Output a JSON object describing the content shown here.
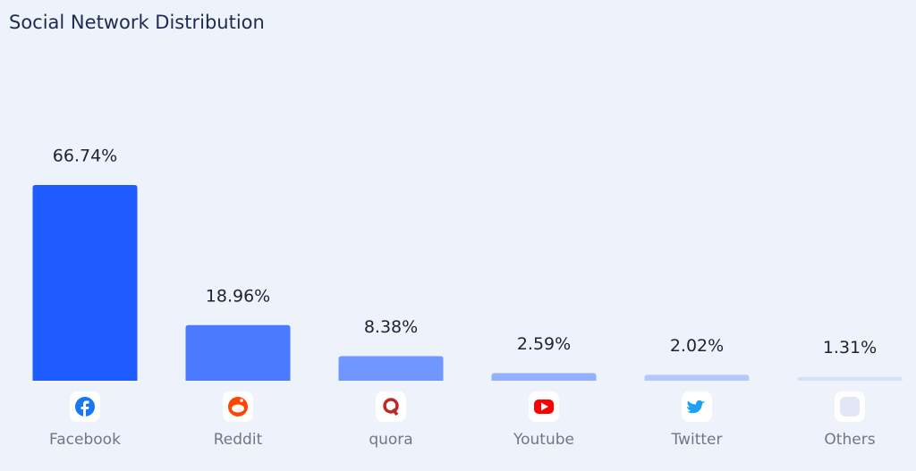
{
  "chart_data": {
    "type": "bar",
    "title": "Social Network Distribution",
    "categories": [
      "Facebook",
      "Reddit",
      "quora",
      "Youtube",
      "Twitter",
      "Others"
    ],
    "values": [
      66.74,
      18.96,
      8.38,
      2.59,
      2.02,
      1.31
    ],
    "value_labels": [
      "66.74%",
      "18.96%",
      "8.38%",
      "2.59%",
      "2.02%",
      "1.31%"
    ],
    "colors": [
      "#1f5cff",
      "#4a7bff",
      "#7097ff",
      "#93b0ff",
      "#b4c8fb",
      "#d6e0f8"
    ]
  }
}
